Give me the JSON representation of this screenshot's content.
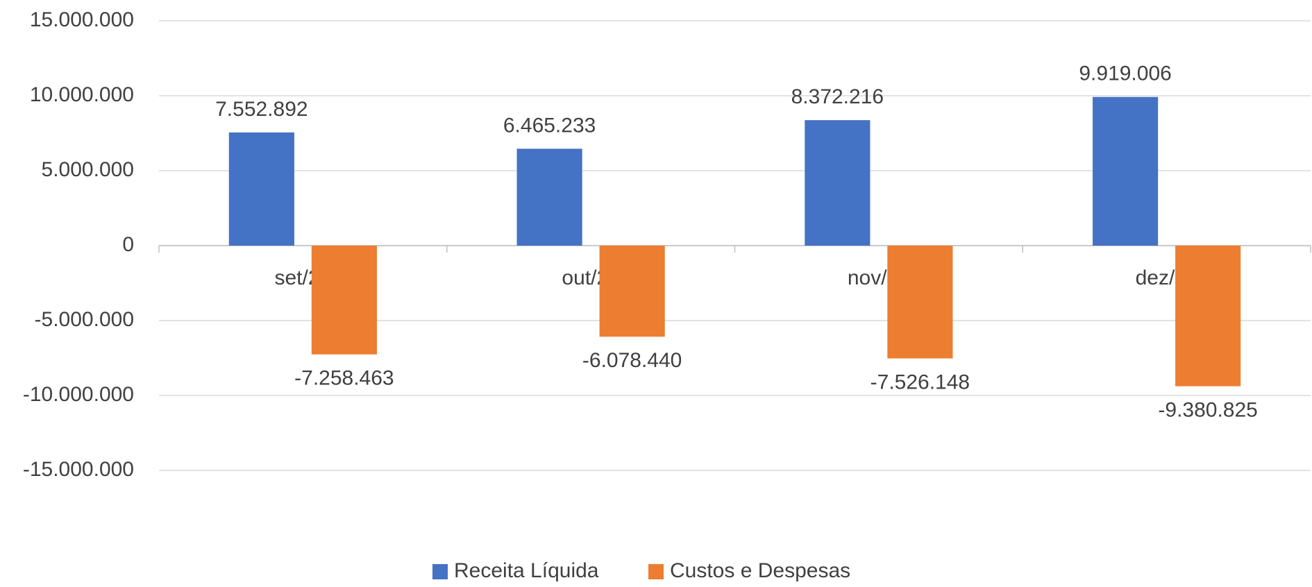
{
  "chart_data": {
    "type": "bar",
    "categories": [
      "set/21",
      "out/21",
      "nov/21",
      "dez/21"
    ],
    "series": [
      {
        "name": "Receita Líquida",
        "color": "#4472c4",
        "values": [
          7552892,
          6465233,
          8372216,
          9919006
        ],
        "value_labels": [
          "7.552.892",
          "6.465.233",
          "8.372.216",
          "9.919.006"
        ]
      },
      {
        "name": "Custos e Despesas",
        "color": "#ed7d31",
        "values": [
          -7258463,
          -6078440,
          -7526148,
          -9380825
        ],
        "value_labels": [
          "-7.258.463",
          "-6.078.440",
          "-7.526.148",
          "-9.380.825"
        ]
      }
    ],
    "ylim": [
      -15000000,
      15000000
    ],
    "yticks": [
      {
        "value": -15000000,
        "label": "-15.000.000"
      },
      {
        "value": -10000000,
        "label": "-10.000.000"
      },
      {
        "value": -5000000,
        "label": "-5.000.000"
      },
      0,
      {
        "value": 5000000,
        "label": "5.000.000"
      },
      {
        "value": 10000000,
        "label": "10.000.000"
      },
      {
        "value": 15000000,
        "label": "15.000.000"
      }
    ],
    "grid": true,
    "legend": "bottom"
  }
}
